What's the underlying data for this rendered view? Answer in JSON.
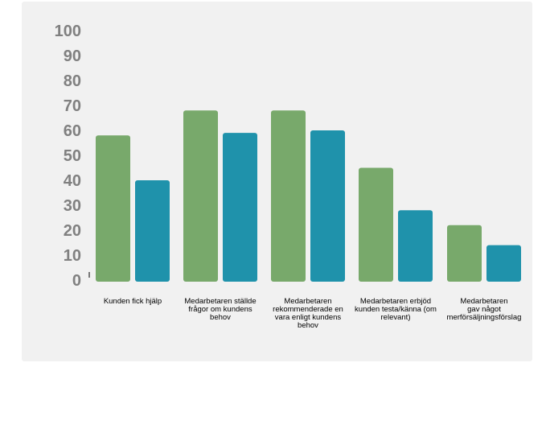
{
  "chart_data": {
    "type": "bar",
    "title": "",
    "xlabel": "",
    "ylabel": "",
    "ylim": [
      0,
      100
    ],
    "yticks": [
      0,
      10,
      20,
      30,
      40,
      50,
      60,
      70,
      80,
      90,
      100
    ],
    "grid": false,
    "legend": "none",
    "categories": [
      [
        "Kunden fick hjälp"
      ],
      [
        "Medarbetaren ställde",
        "frågor om kundens",
        "behov"
      ],
      [
        "Medarbetaren",
        "rekommenderade en",
        "vara enligt kundens",
        "behov"
      ],
      [
        "Medarbetaren erbjöd",
        "kunden testa/känna (om",
        "relevant)"
      ],
      [
        "Medarbetaren",
        "gav något",
        "merförsäljningsförslag"
      ]
    ],
    "series": [
      {
        "values": [
          58,
          68,
          68,
          45,
          22
        ],
        "color": "#78a96b"
      },
      {
        "values": [
          40,
          59,
          60,
          28,
          14
        ],
        "color": "#1f92ab"
      }
    ]
  }
}
